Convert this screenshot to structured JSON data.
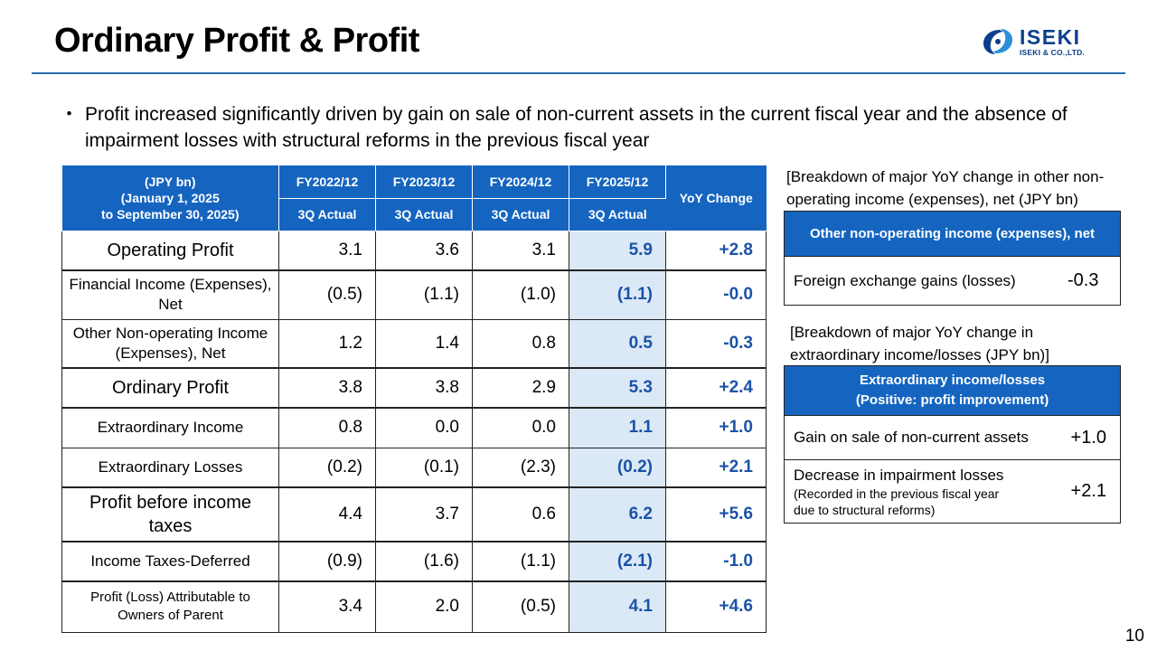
{
  "page": {
    "title": "Ordinary Profit & Profit",
    "bullet": "Profit increased significantly driven by gain on sale of non-current assets in the current fiscal year and the absence of impairment losses with structural reforms in the previous fiscal year",
    "page_number": "10"
  },
  "logo": {
    "name": "ISEKI",
    "sub": "ISEKI & CO.,LTD."
  },
  "main_table": {
    "corner": [
      "(JPY bn)",
      "(January 1, 2025",
      "to September 30, 2025)"
    ],
    "years": [
      "FY2022/12",
      "FY2023/12",
      "FY2024/12",
      "FY2025/12"
    ],
    "period": "3Q Actual",
    "yoy_header": "YoY Change",
    "rows": [
      {
        "label": "Operating Profit",
        "values": [
          "3.1",
          "3.6",
          "3.1",
          "5.9"
        ],
        "yoy": "+2.8"
      },
      {
        "label": "Financial Income (Expenses), Net",
        "values": [
          "(0.5)",
          "(1.1)",
          "(1.0)",
          "(1.1)"
        ],
        "yoy": "-0.0"
      },
      {
        "label": "Other Non-operating Income (Expenses), Net",
        "values": [
          "1.2",
          "1.4",
          "0.8",
          "0.5"
        ],
        "yoy": "-0.3"
      },
      {
        "label": "Ordinary Profit",
        "values": [
          "3.8",
          "3.8",
          "2.9",
          "5.3"
        ],
        "yoy": "+2.4"
      },
      {
        "label": "Extraordinary Income",
        "values": [
          "0.8",
          "0.0",
          "0.0",
          "1.1"
        ],
        "yoy": "+1.0"
      },
      {
        "label": "Extraordinary Losses",
        "values": [
          "(0.2)",
          "(0.1)",
          "(2.3)",
          "(0.2)"
        ],
        "yoy": "+2.1"
      },
      {
        "label": "Profit before income taxes",
        "values": [
          "4.4",
          "3.7",
          "0.6",
          "6.2"
        ],
        "yoy": "+5.6"
      },
      {
        "label": "Income Taxes-Deferred",
        "values": [
          "(0.9)",
          "(1.6)",
          "(1.1)",
          "(2.1)"
        ],
        "yoy": "-1.0"
      },
      {
        "label": "Profit (Loss) Attributable to Owners of Parent",
        "values": [
          "3.4",
          "2.0",
          "(0.5)",
          "4.1"
        ],
        "yoy": "+4.6"
      }
    ]
  },
  "non_operating": {
    "caption": "[Breakdown of major YoY change in other non-operating income (expenses), net (JPY bn)",
    "header": "Other non-operating income (expenses), net",
    "item": "Foreign exchange gains (losses)",
    "value": "-0.3"
  },
  "extraordinary": {
    "caption": "[Breakdown of major YoY change in extraordinary income/losses (JPY bn)]",
    "header_line1": "Extraordinary income/losses",
    "header_line2": "(Positive: profit improvement)",
    "item1": "Gain on sale of non-current assets",
    "value1": "+1.0",
    "item2": "Decrease in impairment losses",
    "item2_note_line1": "(Recorded in the previous fiscal year",
    "item2_note_line2": "due to structural reforms)",
    "value2": "+2.1"
  },
  "colors": {
    "header_blue": "#1565c0",
    "highlight_bg": "#dbe8f6",
    "value_blue": "#1a53a8"
  }
}
